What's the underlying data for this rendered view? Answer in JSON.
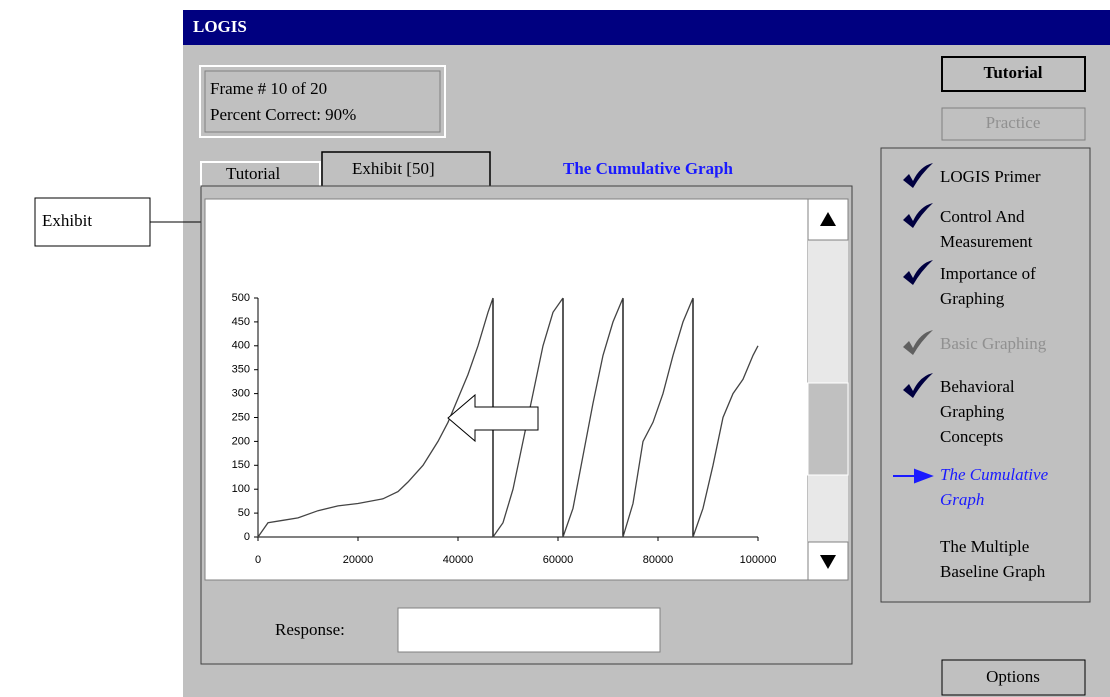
{
  "window": {
    "title": "LOGIS"
  },
  "status": {
    "frame": "Frame # 10 of 20",
    "percent": "Percent Correct: 90%"
  },
  "buttons": {
    "tutorial": "Tutorial",
    "practice": "Practice",
    "options": "Options"
  },
  "tabs": [
    "Tutorial",
    "Exhibit [50]"
  ],
  "heading": "The Cumulative Graph",
  "callout": "Exhibit",
  "response_label": "Response:",
  "nav": [
    {
      "lines": [
        "LOGIS Primer"
      ],
      "state": "done"
    },
    {
      "lines": [
        "Control And",
        "Measurement"
      ],
      "state": "done"
    },
    {
      "lines": [
        "Importance of",
        "Graphing"
      ],
      "state": "done"
    },
    {
      "lines": [
        "Basic Graphing"
      ],
      "state": "disabled"
    },
    {
      "lines": [
        "Behavioral",
        "Graphing",
        "Concepts"
      ],
      "state": "done"
    },
    {
      "lines": [
        "The Cumulative",
        "Graph"
      ],
      "state": "current"
    },
    {
      "lines": [
        "The Multiple",
        "Baseline Graph"
      ],
      "state": "none"
    }
  ],
  "chart_data": {
    "type": "line",
    "xlim": [
      0,
      100000
    ],
    "xticks": [
      0,
      20000,
      40000,
      60000,
      80000,
      100000
    ],
    "ylim": [
      0,
      500
    ],
    "yticks": [
      0,
      50,
      100,
      150,
      200,
      250,
      300,
      350,
      400,
      450,
      500
    ],
    "resets": [
      47000,
      61000,
      73000,
      87000
    ],
    "series": [
      {
        "color": "#444444",
        "x": [
          0,
          2000,
          5000,
          8000,
          12000,
          16000,
          20000,
          25000,
          28000,
          30000,
          33000,
          36000,
          38000,
          40000,
          42000,
          44000,
          46000,
          47000,
          47000,
          47000,
          49000,
          51000,
          53000,
          55000,
          57000,
          59000,
          61000,
          61000,
          61000,
          63000,
          65000,
          67000,
          69000,
          71000,
          73000,
          73000,
          73000,
          75000,
          77000,
          79000,
          81000,
          83000,
          85000,
          87000,
          87000,
          87000,
          89000,
          91000,
          93000,
          95000,
          97000,
          99000,
          100000
        ],
        "values": [
          0,
          30,
          35,
          40,
          55,
          65,
          70,
          80,
          95,
          115,
          150,
          200,
          240,
          290,
          340,
          400,
          470,
          500,
          null,
          0,
          30,
          100,
          200,
          300,
          400,
          470,
          500,
          null,
          0,
          60,
          170,
          280,
          380,
          450,
          500,
          null,
          0,
          70,
          200,
          240,
          300,
          380,
          450,
          500,
          null,
          0,
          60,
          150,
          250,
          300,
          330,
          380,
          400
        ]
      }
    ]
  }
}
